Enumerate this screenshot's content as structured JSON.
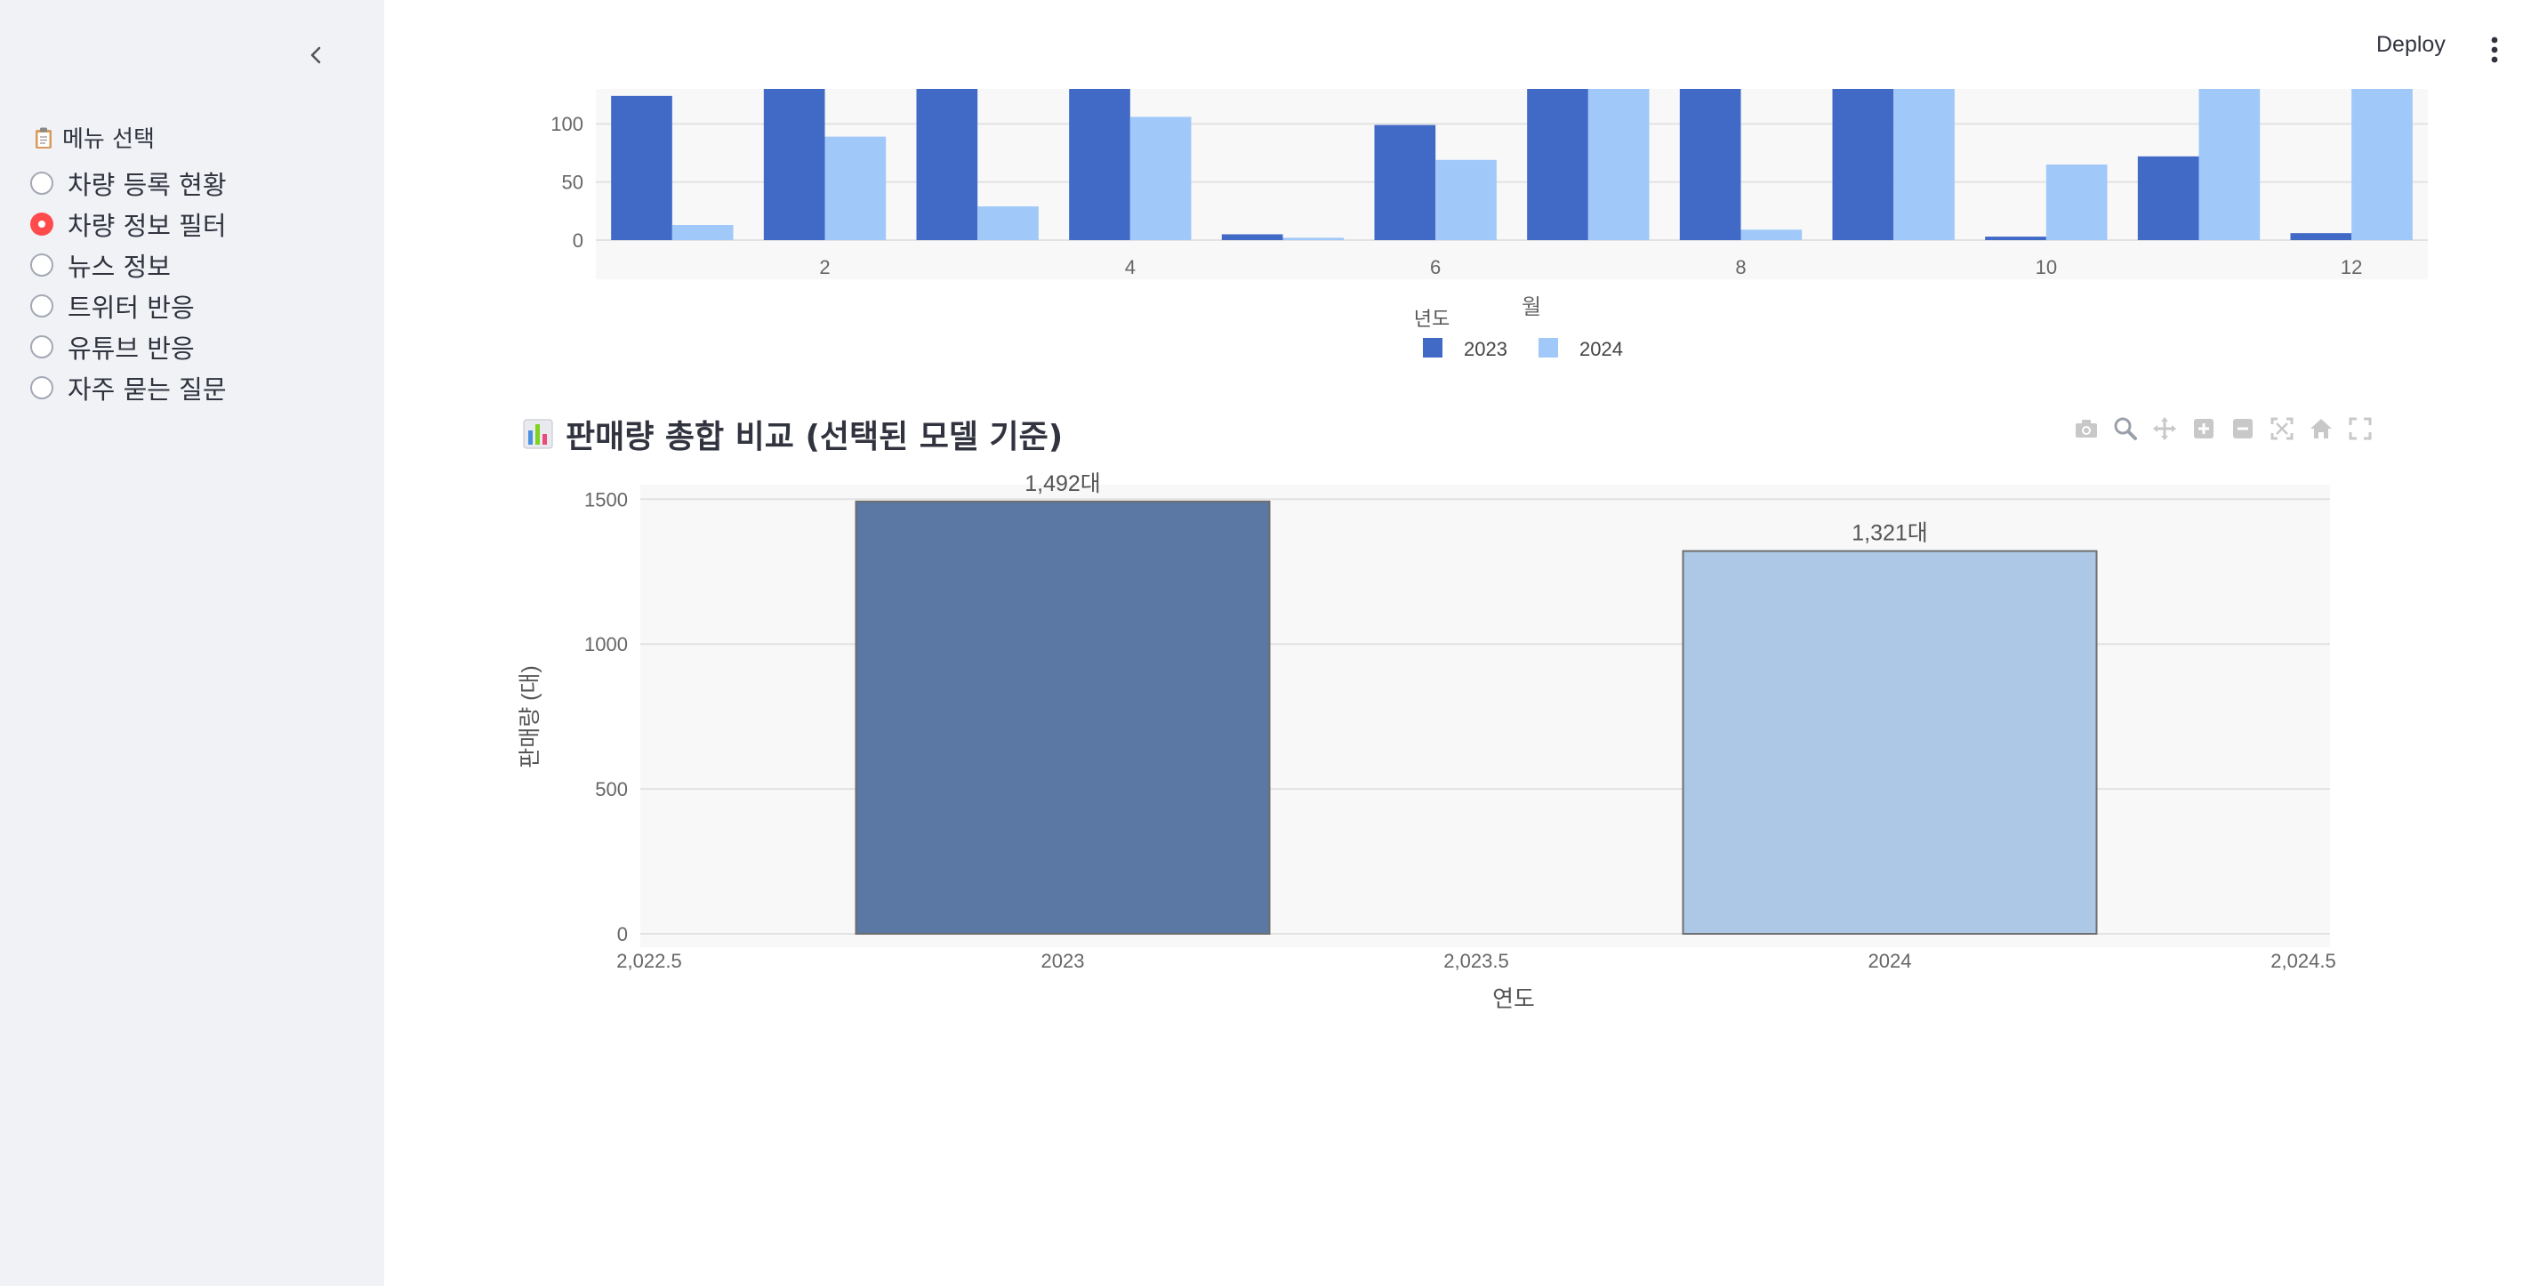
{
  "sidebar": {
    "menu_title": "메뉴 선택",
    "items": [
      {
        "label": "차량 등록 현황",
        "selected": false
      },
      {
        "label": "차량 정보 필터",
        "selected": true
      },
      {
        "label": "뉴스 정보",
        "selected": false
      },
      {
        "label": "트위터 반응",
        "selected": false
      },
      {
        "label": "유튜브 반응",
        "selected": false
      },
      {
        "label": "자주 묻는 질문",
        "selected": false
      }
    ]
  },
  "header": {
    "deploy_label": "Deploy"
  },
  "section": {
    "title": "판매량 총합 비교 (선택된 모델 기준)"
  },
  "colors": {
    "accent": "#ff4b4b",
    "series2023": "#4169c6",
    "series2024": "#a0c8f8",
    "bar2023": "#5b77a3",
    "bar2024": "#adc8e6"
  },
  "chart_data": [
    {
      "type": "bar",
      "xlabel": "월",
      "legend_title": "년도",
      "x": [
        1,
        2,
        3,
        4,
        5,
        6,
        7,
        8,
        9,
        10,
        11,
        12
      ],
      "xticks": [
        "2",
        "4",
        "6",
        "8",
        "10",
        "12"
      ],
      "yticks": [
        "0",
        "50",
        "100"
      ],
      "ylim": [
        0,
        130
      ],
      "series": [
        {
          "name": "2023",
          "values": [
            124,
            130,
            130,
            130,
            5,
            99,
            130,
            130,
            130,
            3,
            72,
            6
          ]
        },
        {
          "name": "2024",
          "values": [
            13,
            89,
            29,
            106,
            2,
            69,
            130,
            9,
            130,
            65,
            130,
            130
          ]
        }
      ],
      "legend_position": "bottom-center"
    },
    {
      "type": "bar",
      "title": "판매량 총합 비교 (선택된 모델 기준)",
      "xlabel": "연도",
      "ylabel": "판매량 (대)",
      "categories": [
        "2023",
        "2024"
      ],
      "x": [
        2023,
        2024
      ],
      "values": [
        1492,
        1321
      ],
      "data_labels": [
        "1,492대",
        "1,321대"
      ],
      "xticks": [
        "2,022.5",
        "2023",
        "2,023.5",
        "2024",
        "2,024.5"
      ],
      "yticks": [
        "0",
        "500",
        "1000",
        "1500"
      ],
      "xlim": [
        2022.5,
        2024.5
      ],
      "ylim": [
        0,
        1550
      ]
    }
  ]
}
